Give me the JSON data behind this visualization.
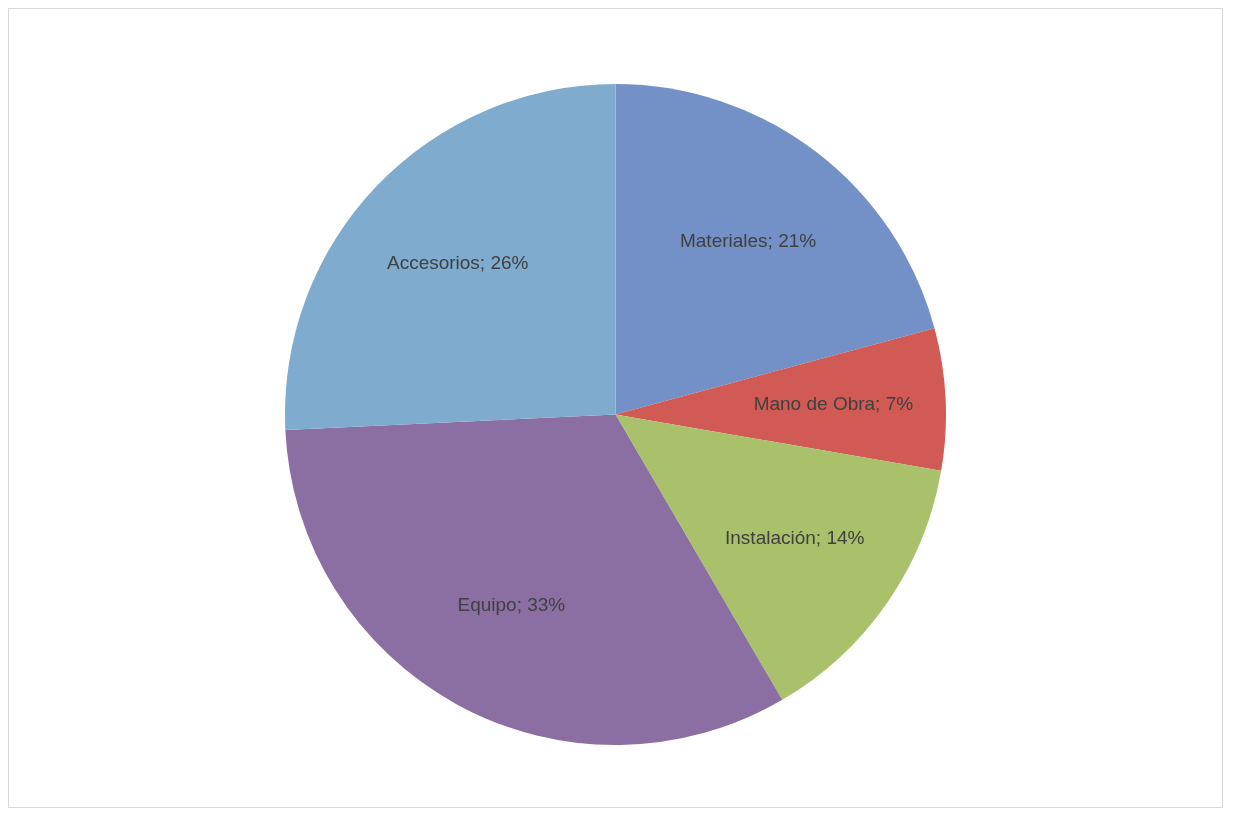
{
  "chart_data": {
    "type": "pie",
    "categories": [
      "Materiales",
      "Mano de Obra",
      "Instalación",
      "Equipo",
      "Accesorios"
    ],
    "values": [
      21,
      7,
      14,
      33,
      26
    ],
    "colors": [
      "#7391c6",
      "#d15a55",
      "#a9c16a",
      "#8b6fa3",
      "#7fabcf"
    ],
    "value_labels": [
      "21%",
      "7%",
      "14%",
      "33%",
      "26%"
    ],
    "legend": false
  }
}
